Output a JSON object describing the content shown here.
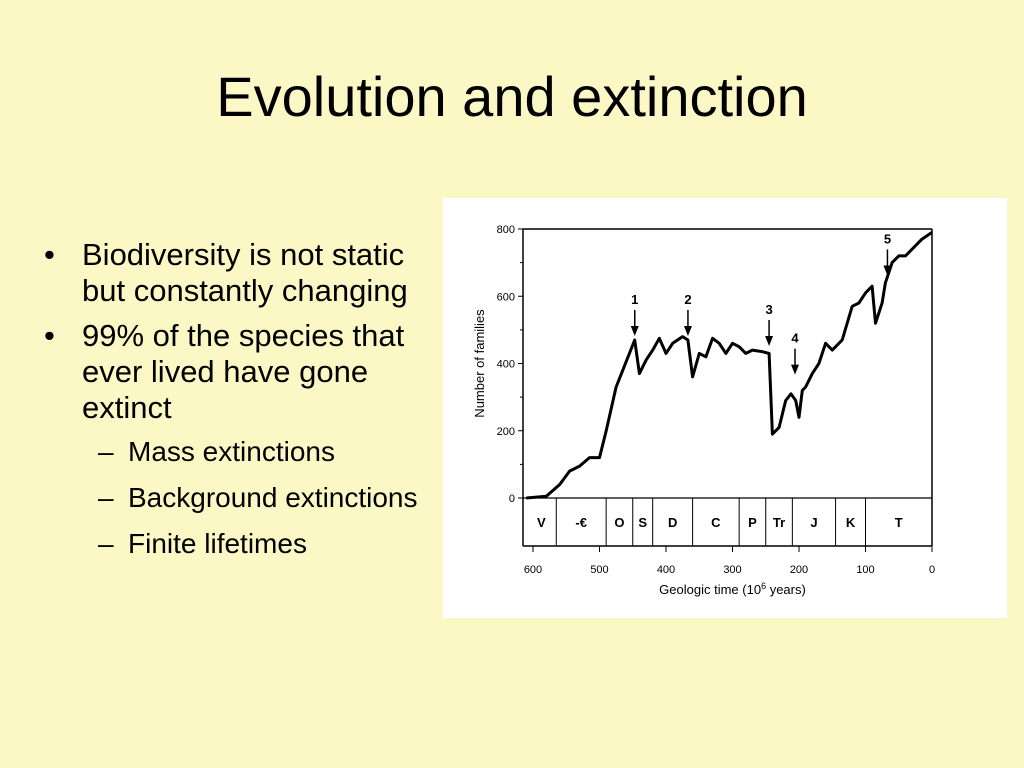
{
  "slide": {
    "title": "Evolution and extinction",
    "bullets": [
      {
        "text": "Biodiversity is not static but constantly changing"
      },
      {
        "text": "99% of the species that ever lived have gone extinct"
      }
    ],
    "sub_bullets": [
      {
        "text": "Mass extinctions"
      },
      {
        "text": "Background extinctions"
      },
      {
        "text": "Finite lifetimes"
      }
    ],
    "bullet_symbol": "•",
    "dash_symbol": "–"
  },
  "chart_data": {
    "type": "line",
    "xlabel_main": "Geologic time (10",
    "xlabel_sup": "6",
    "xlabel_tail": " years)",
    "ylabel": "Number of families",
    "xlim": [
      600,
      0
    ],
    "ylim": [
      0,
      800
    ],
    "x_ticks": [
      600,
      500,
      400,
      300,
      200,
      100,
      0
    ],
    "y_ticks": [
      0,
      200,
      400,
      600,
      800
    ],
    "periods": [
      {
        "label": "V",
        "start": 610,
        "end": 565
      },
      {
        "label": "-€",
        "start": 565,
        "end": 490
      },
      {
        "label": "O",
        "start": 490,
        "end": 450
      },
      {
        "label": "S",
        "start": 450,
        "end": 420
      },
      {
        "label": "D",
        "start": 420,
        "end": 360
      },
      {
        "label": "C",
        "start": 360,
        "end": 290
      },
      {
        "label": "P",
        "start": 290,
        "end": 250
      },
      {
        "label": "Tr",
        "start": 250,
        "end": 210
      },
      {
        "label": "J",
        "start": 210,
        "end": 145
      },
      {
        "label": "K",
        "start": 145,
        "end": 100
      },
      {
        "label": "T",
        "start": 100,
        "end": 0
      }
    ],
    "series": [
      {
        "points": [
          [
            610,
            0
          ],
          [
            580,
            5
          ],
          [
            560,
            40
          ],
          [
            545,
            80
          ],
          [
            530,
            95
          ],
          [
            515,
            120
          ],
          [
            500,
            120
          ],
          [
            490,
            200
          ],
          [
            475,
            330
          ],
          [
            465,
            380
          ],
          [
            455,
            430
          ],
          [
            447,
            470
          ],
          [
            440,
            370
          ],
          [
            430,
            410
          ],
          [
            420,
            440
          ],
          [
            410,
            475
          ],
          [
            400,
            430
          ],
          [
            390,
            460
          ],
          [
            375,
            480
          ],
          [
            367,
            470
          ],
          [
            360,
            360
          ],
          [
            350,
            430
          ],
          [
            340,
            420
          ],
          [
            330,
            475
          ],
          [
            320,
            460
          ],
          [
            310,
            430
          ],
          [
            300,
            460
          ],
          [
            290,
            450
          ],
          [
            280,
            430
          ],
          [
            270,
            440
          ],
          [
            255,
            435
          ],
          [
            245,
            430
          ],
          [
            240,
            190
          ],
          [
            230,
            210
          ],
          [
            220,
            290
          ],
          [
            212,
            310
          ],
          [
            205,
            290
          ],
          [
            200,
            240
          ],
          [
            195,
            320
          ],
          [
            190,
            330
          ],
          [
            180,
            370
          ],
          [
            170,
            400
          ],
          [
            160,
            460
          ],
          [
            150,
            440
          ],
          [
            135,
            470
          ],
          [
            120,
            570
          ],
          [
            110,
            580
          ],
          [
            100,
            610
          ],
          [
            90,
            630
          ],
          [
            85,
            520
          ],
          [
            75,
            580
          ],
          [
            70,
            640
          ],
          [
            60,
            700
          ],
          [
            50,
            720
          ],
          [
            40,
            720
          ],
          [
            30,
            740
          ],
          [
            15,
            770
          ],
          [
            0,
            790
          ]
        ]
      }
    ],
    "annotations": [
      {
        "label": "1",
        "x": 447,
        "y": 470
      },
      {
        "label": "2",
        "x": 367,
        "y": 470
      },
      {
        "label": "3",
        "x": 245,
        "y": 440
      },
      {
        "label": "4",
        "x": 206,
        "y": 355
      },
      {
        "label": "5",
        "x": 67,
        "y": 650
      }
    ]
  }
}
